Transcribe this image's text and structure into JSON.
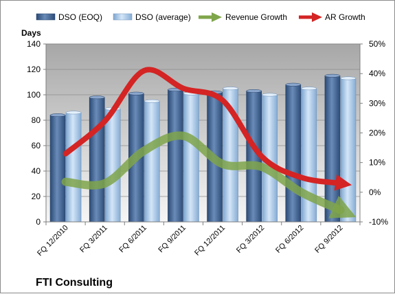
{
  "chart_data": {
    "type": "bar",
    "title": "FTI Consulting",
    "ylabel": "Days",
    "categories": [
      "FQ 12/2010",
      "FQ 3/2011",
      "FQ 6/2011",
      "FQ 9/2011",
      "FQ 12/2011",
      "FQ 3/2012",
      "FQ 6/2012",
      "FQ 9/2012"
    ],
    "ylim": [
      0,
      140
    ],
    "yticks": [
      "0",
      "20",
      "40",
      "60",
      "80",
      "100",
      "120",
      "140"
    ],
    "y2lim": [
      -10,
      50
    ],
    "y2ticks": [
      "-10%",
      "0%",
      "10%",
      "20%",
      "30%",
      "40%",
      "50%"
    ],
    "bar_series": [
      {
        "name": "DSO (EOQ)",
        "values": [
          84,
          98,
          101,
          104,
          102,
          103,
          108,
          115
        ],
        "color": "#3d5f8f"
      },
      {
        "name": "DSO (average)",
        "values": [
          86,
          89,
          95,
          101,
          105,
          100,
          105,
          113
        ],
        "color": "#a9c9ea"
      }
    ],
    "line_series": [
      {
        "name": "Revenue Growth",
        "axis": "secondary",
        "values": [
          3.5,
          3,
          14,
          19,
          9.5,
          8.5,
          0,
          -6
        ],
        "color": "#7fa54a"
      },
      {
        "name": "AR Growth",
        "axis": "secondary",
        "values": [
          13,
          24,
          41,
          35,
          31,
          12,
          5,
          3
        ],
        "color": "#d42424"
      }
    ],
    "legend_position": "top",
    "grid": true
  }
}
